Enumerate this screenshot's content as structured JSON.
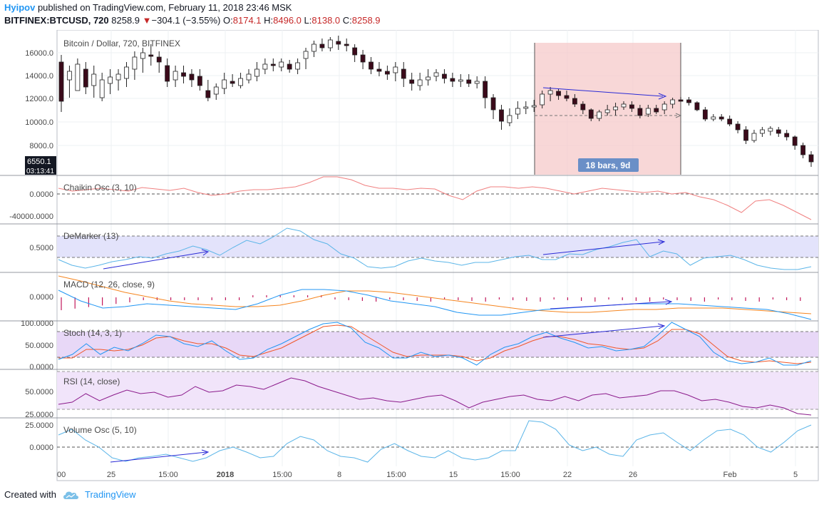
{
  "header": {
    "author": "Hyipov",
    "published": " published on TradingView.com, February 11, 2018 23:46 MSK",
    "symbol": "BITFINEX:BTCUSD, 720",
    "last": "8258.9",
    "change_arrow": "▼",
    "change": "−304.1 (−3.55%)",
    "o_label": "O:",
    "o_value": "8174.1",
    "h_label": "H:",
    "h_value": "8496.0",
    "l_label": "L:",
    "l_value": "8138.0",
    "c_label": "C:",
    "c_value": "8258.9"
  },
  "main": {
    "title": "Bitcoin / Dollar, 720, BITFINEX",
    "y_ticks": [
      "16000.0",
      "14000.0",
      "12000.0",
      "10000.0",
      "8000.0"
    ],
    "price_tag": "6550.1",
    "time_tag": "03:13:41",
    "range_label": "18 bars, 9d"
  },
  "panels": {
    "chaikin": {
      "title": "Chaikin Osc (3, 10)",
      "ticks": [
        "0.0000",
        "-40000.0000"
      ]
    },
    "demarker": {
      "title": "DeMarker (13)",
      "ticks": [
        "0.5000"
      ]
    },
    "macd": {
      "title": "MACD (12, 26, close, 9)",
      "ticks": [
        "0.0000"
      ]
    },
    "stoch": {
      "title": "Stoch (14, 3, 1)",
      "ticks": [
        "100.0000",
        "50.0000",
        "0.0000"
      ]
    },
    "rsi": {
      "title": "RSI (14, close)",
      "ticks": [
        "50.0000",
        "25.0000"
      ]
    },
    "volosc": {
      "title": "Volume Osc (5, 10)",
      "ticks": [
        "25.0000",
        "0.0000"
      ]
    }
  },
  "time_axis": [
    "00",
    "25",
    "15:00",
    "2018",
    "15:00",
    "8",
    "15:00",
    "15",
    "15:00",
    "22",
    "26",
    "Feb",
    "5"
  ],
  "colors": {
    "up": "#ffffff",
    "down": "#3b0a1a",
    "accent": "#2196f3",
    "range": "#f5c6c6",
    "trend": "#2a2ad6"
  },
  "footer": {
    "created_with": "Created with",
    "brand": "TradingView"
  }
}
